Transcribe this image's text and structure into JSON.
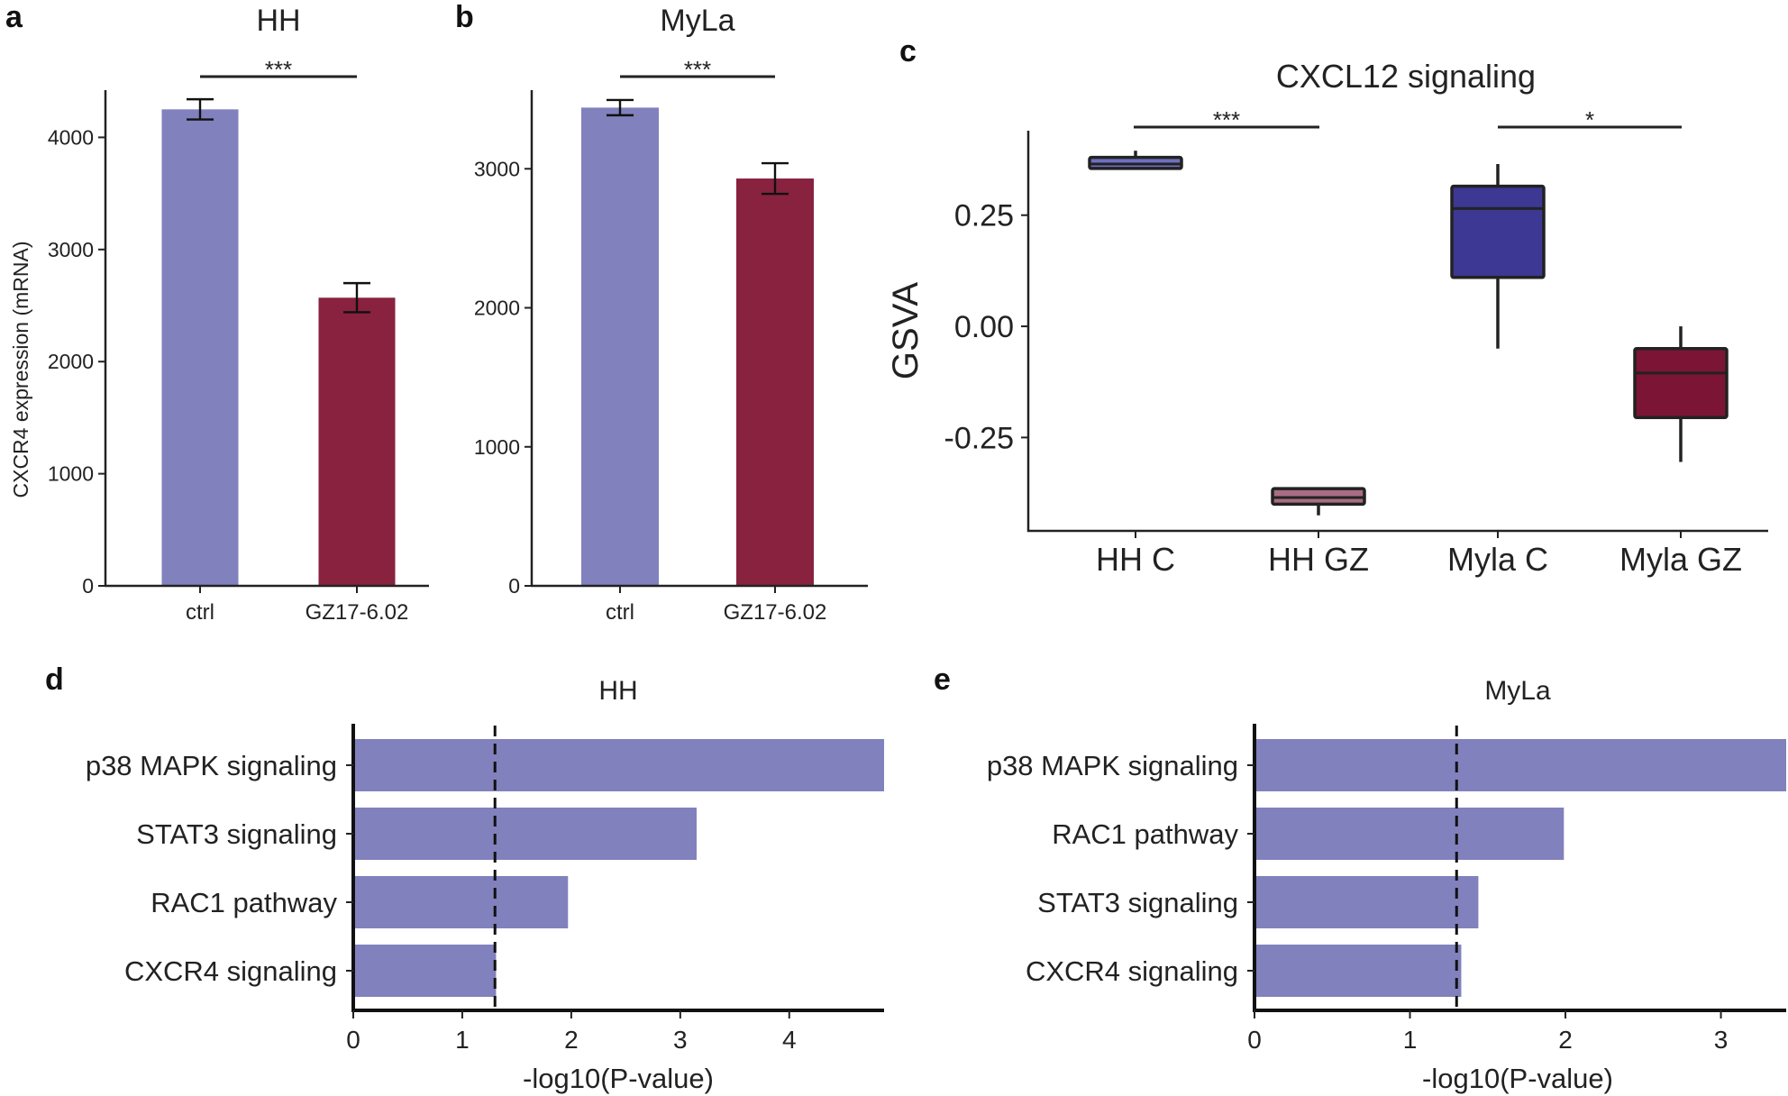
{
  "panels": {
    "a": "a",
    "b": "b",
    "c": "c",
    "d": "d",
    "e": "e"
  },
  "colors": {
    "ctrl": "#8181bd",
    "treat": "#88223f",
    "box_hh_c": "#6e6ec0",
    "box_hh_gz": "#a86d82",
    "box_myla_c": "#3c3893",
    "box_myla_gz": "#7c1535",
    "pathway_bar": "#8181bd"
  },
  "chart_data": [
    {
      "id": "a",
      "type": "bar",
      "title": "HH",
      "xlabel": "",
      "ylabel": "CXCR4 expression (mRNA)",
      "categories": [
        "ctrl",
        "GZ17-6.02"
      ],
      "values": [
        4250,
        2570
      ],
      "errors": [
        90,
        130
      ],
      "ylim": [
        0,
        4550
      ],
      "yticks": [
        0,
        1000,
        2000,
        3000,
        4000
      ],
      "significance": "***"
    },
    {
      "id": "b",
      "type": "bar",
      "title": "MyLa",
      "xlabel": "",
      "ylabel": "",
      "categories": [
        "ctrl",
        "GZ17-6.02"
      ],
      "values": [
        3440,
        2930
      ],
      "errors": [
        55,
        110
      ],
      "ylim": [
        0,
        3650
      ],
      "yticks": [
        0,
        1000,
        2000,
        3000
      ],
      "significance": "***"
    },
    {
      "id": "c",
      "type": "box",
      "title": "CXCL12 signaling",
      "xlabel": "",
      "ylabel": "GSVA",
      "categories": [
        "HH C",
        "HH GZ",
        "Myla C",
        "Myla GZ"
      ],
      "boxes": [
        {
          "min": 0.355,
          "q1": 0.355,
          "median": 0.365,
          "q3": 0.38,
          "max": 0.395
        },
        {
          "min": -0.425,
          "q1": -0.4,
          "median": -0.385,
          "q3": -0.365,
          "max": -0.365
        },
        {
          "min": -0.05,
          "q1": 0.11,
          "median": 0.265,
          "q3": 0.315,
          "max": 0.365
        },
        {
          "min": -0.305,
          "q1": -0.205,
          "median": -0.105,
          "q3": -0.05,
          "max": 0.0
        }
      ],
      "ylim": [
        -0.46,
        0.44
      ],
      "yticks": [
        -0.25,
        0.0,
        0.25
      ],
      "ytick_labels": [
        "-0.25",
        "0.00",
        "0.25"
      ],
      "significance": [
        {
          "from": 0,
          "to": 1,
          "label": "***"
        },
        {
          "from": 2,
          "to": 3,
          "label": "*"
        }
      ]
    },
    {
      "id": "d",
      "type": "bar",
      "orientation": "horizontal",
      "title": "HH",
      "xlabel": "-log10(P-value)",
      "ylabel": "",
      "categories": [
        "p38 MAPK signaling",
        "STAT3 signaling",
        "RAC1 pathway",
        "CXCR4 signaling"
      ],
      "values": [
        4.87,
        3.15,
        1.97,
        1.31
      ],
      "threshold": 1.3,
      "xlim": [
        0,
        4.87
      ],
      "xticks": [
        0,
        1,
        2,
        3,
        4
      ]
    },
    {
      "id": "e",
      "type": "bar",
      "orientation": "horizontal",
      "title": "MyLa",
      "xlabel": "-log10(P-value)",
      "ylabel": "",
      "categories": [
        "p38 MAPK signaling",
        "RAC1 pathway",
        "STAT3 signaling",
        "CXCR4 signaling"
      ],
      "values": [
        3.42,
        1.99,
        1.44,
        1.33
      ],
      "threshold": 1.3,
      "xlim": [
        0,
        3.42
      ],
      "xticks": [
        0,
        1,
        2,
        3
      ]
    }
  ]
}
